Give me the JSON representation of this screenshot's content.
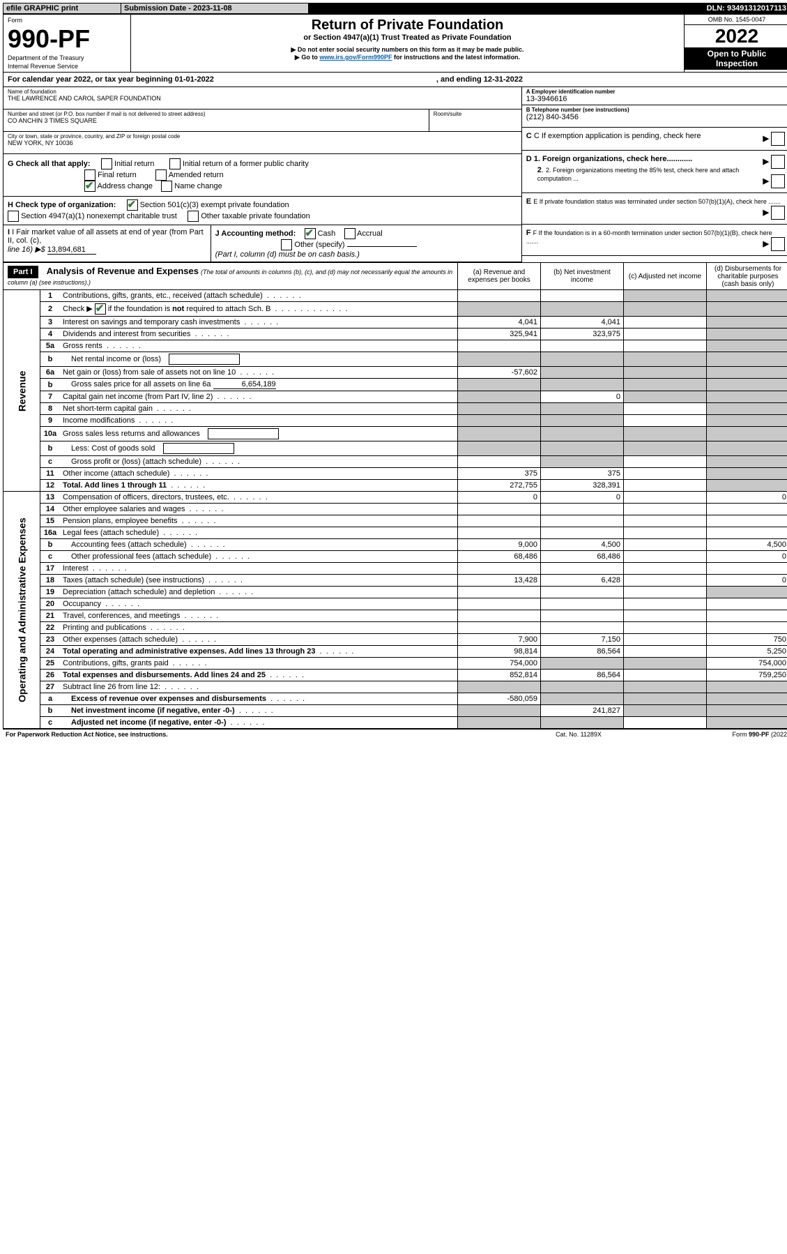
{
  "header_bar": {
    "efile": "efile GRAPHIC print",
    "submission_label": "Submission Date - 2023-11-08",
    "dln_label": "DLN: 93491312017113"
  },
  "top_block": {
    "form_word": "Form",
    "form_number": "990-PF",
    "dept": "Department of the Treasury",
    "irs": "Internal Revenue Service",
    "title": "Return of Private Foundation",
    "subtitle": "or Section 4947(a)(1) Trust Treated as Private Foundation",
    "note1": "▶ Do not enter social security numbers on this form as it may be made public.",
    "note2_prefix": "▶ Go to ",
    "note2_link": "www.irs.gov/Form990PF",
    "note2_suffix": " for instructions and the latest information.",
    "omb": "OMB No. 1545-0047",
    "year": "2022",
    "open": "Open to Public",
    "inspection": "Inspection"
  },
  "calendar_line": {
    "prefix": "For calendar year 2022, or tax year beginning 01-01-2022",
    "middle": ", and ending 12-31-2022"
  },
  "identity": {
    "name_label": "Name of foundation",
    "name": "THE LAWRENCE AND CAROL SAPER FOUNDATION",
    "addr_label": "Number and street (or P.O. box number if mail is not delivered to street address)",
    "addr": "CO ANCHIN 3 TIMES SQUARE",
    "room_label": "Room/suite",
    "city_label": "City or town, state or province, country, and ZIP or foreign postal code",
    "city": "NEW YORK, NY  10036",
    "ein_label": "A Employer identification number",
    "ein": "13-3946616",
    "phone_label": "B Telephone number (see instructions)",
    "phone": "(212) 840-3456",
    "c_label": "C If exemption application is pending, check here",
    "d1": "D 1. Foreign organizations, check here............",
    "d2": "2. Foreign organizations meeting the 85% test, check here and attach computation ...",
    "e_label": "E  If private foundation status was terminated under section 507(b)(1)(A), check here .......",
    "f_label": "F  If the foundation is in a 60-month termination under section 507(b)(1)(B), check here ......."
  },
  "g_block": {
    "label": "G Check all that apply:",
    "opts": [
      "Initial return",
      "Final return",
      "Address change",
      "Initial return of a former public charity",
      "Amended return",
      "Name change"
    ]
  },
  "h_block": {
    "label": "H Check type of organization:",
    "opt1": "Section 501(c)(3) exempt private foundation",
    "opt2": "Section 4947(a)(1) nonexempt charitable trust",
    "opt3": "Other taxable private foundation"
  },
  "i_block": {
    "label": "I Fair market value of all assets at end of year (from Part II, col. (c),",
    "line16": "line 16) ▶$",
    "value": "13,894,681"
  },
  "j_block": {
    "label": "J Accounting method:",
    "cash": "Cash",
    "accrual": "Accrual",
    "other": "Other (specify)",
    "note": "(Part I, column (d) must be on cash basis.)"
  },
  "part1": {
    "label": "Part I",
    "title": "Analysis of Revenue and Expenses",
    "title_note": "(The total of amounts in columns (b), (c), and (d) may not necessarily equal the amounts in column (a) (see instructions).)",
    "col_a": "(a)   Revenue and expenses per books",
    "col_b": "(b)   Net investment income",
    "col_c": "(c)   Adjusted net income",
    "col_d": "(d)   Disbursements for charitable purposes (cash basis only)"
  },
  "sidebars": {
    "revenue": "Revenue",
    "expenses": "Operating and Administrative Expenses"
  },
  "rows": [
    {
      "num": "1",
      "desc": "Contributions, gifts, grants, etc., received (attach schedule)",
      "a": "",
      "b": "",
      "c_sh": true,
      "d_sh": true
    },
    {
      "num": "2",
      "desc": "Check ▶ ☑ if the foundation is not required to attach Sch. B",
      "desc_is_special": true,
      "a": "",
      "b": "",
      "c_sh": true,
      "d_sh": true,
      "ab_sh": true
    },
    {
      "num": "3",
      "desc": "Interest on savings and temporary cash investments",
      "a": "4,041",
      "b": "4,041",
      "d_sh": true
    },
    {
      "num": "4",
      "desc": "Dividends and interest from securities",
      "a": "325,941",
      "b": "323,975",
      "d_sh": true
    },
    {
      "num": "5a",
      "desc": "Gross rents",
      "a": "",
      "b": "",
      "d_sh": true
    },
    {
      "num": "b",
      "desc": "Net rental income or (loss)",
      "indent": true,
      "has_box": true,
      "a": "",
      "b": "",
      "ab_sh": true,
      "c_sh": true,
      "d_sh": true
    },
    {
      "num": "6a",
      "desc": "Net gain or (loss) from sale of assets not on line 10",
      "a": "-57,602",
      "b_sh": true,
      "c_sh": true,
      "d_sh": true
    },
    {
      "num": "b",
      "desc": "Gross sales price for all assets on line 6a",
      "indent": true,
      "inline_val": "6,654,189",
      "ab_sh": true,
      "b_sh": true,
      "c_sh": true,
      "d_sh": true
    },
    {
      "num": "7",
      "desc": "Capital gain net income (from Part IV, line 2)",
      "a_sh": true,
      "b": "0",
      "c_sh": true,
      "d_sh": true
    },
    {
      "num": "8",
      "desc": "Net short-term capital gain",
      "a_sh": true,
      "b_sh": true,
      "d_sh": true
    },
    {
      "num": "9",
      "desc": "Income modifications",
      "a_sh": true,
      "b_sh": true,
      "d_sh": true
    },
    {
      "num": "10a",
      "desc": "Gross sales less returns and allowances",
      "has_box": true,
      "ab_sh": true,
      "b_sh": true,
      "c_sh": true,
      "d_sh": true
    },
    {
      "num": "b",
      "desc": "Less: Cost of goods sold",
      "indent": true,
      "has_box": true,
      "ab_sh": true,
      "b_sh": true,
      "c_sh": true,
      "d_sh": true
    },
    {
      "num": "c",
      "desc": "Gross profit or (loss) (attach schedule)",
      "indent": true,
      "a": "",
      "b_sh": true,
      "d_sh": true
    },
    {
      "num": "11",
      "desc": "Other income (attach schedule)",
      "a": "375",
      "b": "375",
      "d_sh": true
    },
    {
      "num": "12",
      "desc": "Total. Add lines 1 through 11",
      "bold": true,
      "a": "272,755",
      "b": "328,391",
      "d_sh": true
    },
    {
      "num": "13",
      "desc": "Compensation of officers, directors, trustees, etc.",
      "a": "0",
      "b": "0",
      "d": "0"
    },
    {
      "num": "14",
      "desc": "Other employee salaries and wages",
      "a": "",
      "b": ""
    },
    {
      "num": "15",
      "desc": "Pension plans, employee benefits",
      "a": "",
      "b": ""
    },
    {
      "num": "16a",
      "desc": "Legal fees (attach schedule)",
      "a": "",
      "b": ""
    },
    {
      "num": "b",
      "desc": "Accounting fees (attach schedule)",
      "indent": true,
      "a": "9,000",
      "b": "4,500",
      "d": "4,500"
    },
    {
      "num": "c",
      "desc": "Other professional fees (attach schedule)",
      "indent": true,
      "a": "68,486",
      "b": "68,486",
      "d": "0"
    },
    {
      "num": "17",
      "desc": "Interest",
      "a": "",
      "b": ""
    },
    {
      "num": "18",
      "desc": "Taxes (attach schedule) (see instructions)",
      "a": "13,428",
      "b": "6,428",
      "d": "0"
    },
    {
      "num": "19",
      "desc": "Depreciation (attach schedule) and depletion",
      "a": "",
      "b": "",
      "d_sh": true
    },
    {
      "num": "20",
      "desc": "Occupancy",
      "a": "",
      "b": ""
    },
    {
      "num": "21",
      "desc": "Travel, conferences, and meetings",
      "a": "",
      "b": ""
    },
    {
      "num": "22",
      "desc": "Printing and publications",
      "a": "",
      "b": ""
    },
    {
      "num": "23",
      "desc": "Other expenses (attach schedule)",
      "a": "7,900",
      "b": "7,150",
      "d": "750"
    },
    {
      "num": "24",
      "desc": "Total operating and administrative expenses. Add lines 13 through 23",
      "bold": true,
      "twoRow": true,
      "a": "98,814",
      "b": "86,564",
      "d": "5,250"
    },
    {
      "num": "25",
      "desc": "Contributions, gifts, grants paid",
      "a": "754,000",
      "b_sh": true,
      "c_sh": true,
      "d": "754,000"
    },
    {
      "num": "26",
      "desc": "Total expenses and disbursements. Add lines 24 and 25",
      "bold": true,
      "a": "852,814",
      "b": "86,564",
      "d": "759,250"
    },
    {
      "num": "27",
      "desc": "Subtract line 26 from line 12:",
      "a_sh": true,
      "b_sh": true,
      "c_sh": true,
      "d_sh": true
    },
    {
      "num": "a",
      "desc": "Excess of revenue over expenses and disbursements",
      "indent": true,
      "bold": true,
      "a": "-580,059",
      "b_sh": true,
      "c_sh": true,
      "d_sh": true
    },
    {
      "num": "b",
      "desc": "Net investment income (if negative, enter -0-)",
      "indent": true,
      "bold": true,
      "a_sh": true,
      "b": "241,827",
      "c_sh": true,
      "d_sh": true
    },
    {
      "num": "c",
      "desc": "Adjusted net income (if negative, enter -0-)",
      "indent": true,
      "bold": true,
      "a_sh": true,
      "b_sh": true,
      "d_sh": true
    }
  ],
  "footer": {
    "left": "For Paperwork Reduction Act Notice, see instructions.",
    "mid": "Cat. No. 11289X",
    "right": "Form 990-PF (2022)"
  }
}
